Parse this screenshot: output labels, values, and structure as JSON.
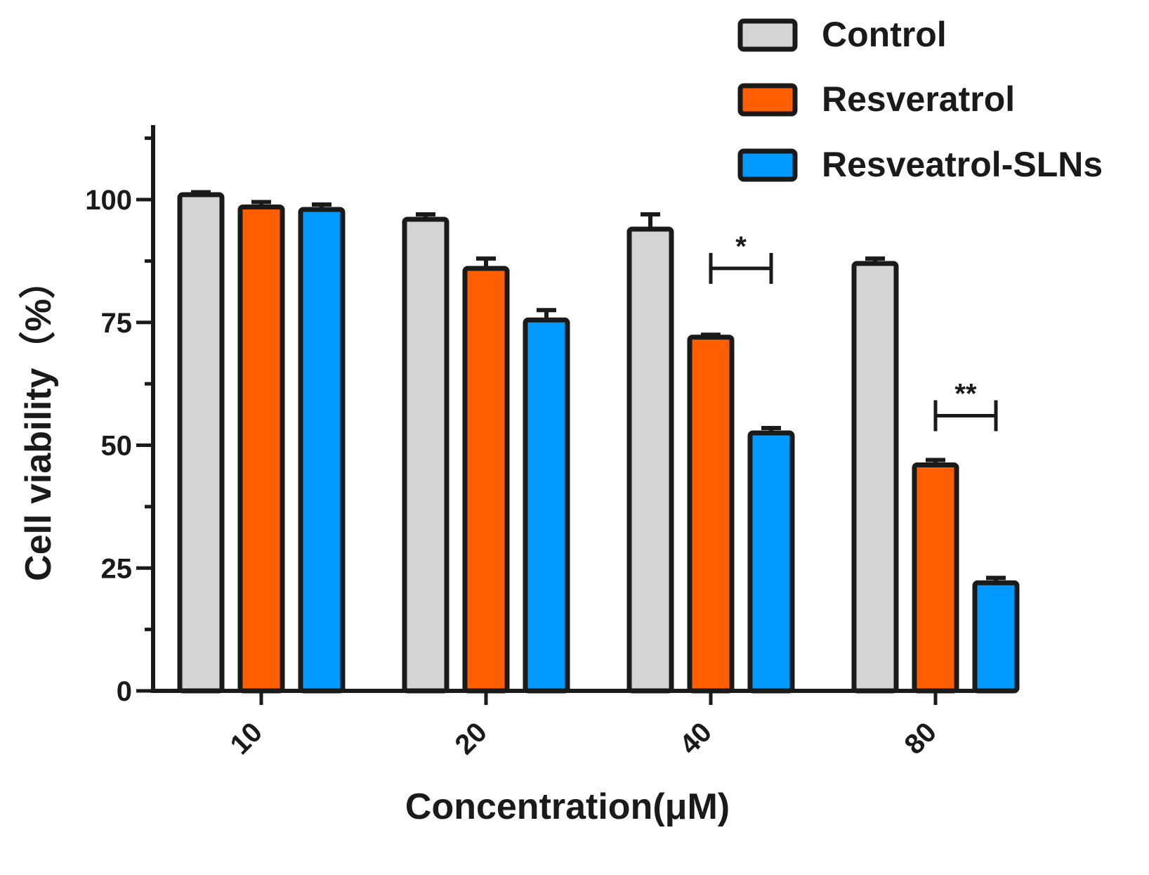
{
  "chart_data": {
    "type": "bar",
    "title": "",
    "xlabel": "Concentration(μM)",
    "ylabel": "Cell viability（%）",
    "ylim": [
      0,
      115
    ],
    "yticks": [
      0,
      25,
      50,
      75,
      100
    ],
    "categories": [
      "10",
      "20",
      "40",
      "80"
    ],
    "series": [
      {
        "name": "Control",
        "color": "#d4d4d4",
        "values": [
          101,
          96,
          94,
          87
        ],
        "errors": [
          0.5,
          1,
          3,
          1
        ]
      },
      {
        "name": "Resveratrol",
        "color": "#ff5f00",
        "values": [
          98.5,
          86,
          72,
          46
        ],
        "errors": [
          1,
          2,
          0.5,
          1
        ]
      },
      {
        "name": "Resveatrol-SLNs",
        "color": "#0099ff",
        "values": [
          98,
          75.5,
          52.5,
          22
        ],
        "errors": [
          1,
          2,
          1,
          1
        ]
      }
    ],
    "annotations": [
      {
        "category": "40",
        "from_series": "Resveratrol",
        "to_series": "Resveatrol-SLNs",
        "label": "*",
        "y": 86
      },
      {
        "category": "80",
        "from_series": "Resveratrol",
        "to_series": "Resveatrol-SLNs",
        "label": "**",
        "y": 56
      }
    ],
    "legend_position": "top-right",
    "grid": false
  }
}
